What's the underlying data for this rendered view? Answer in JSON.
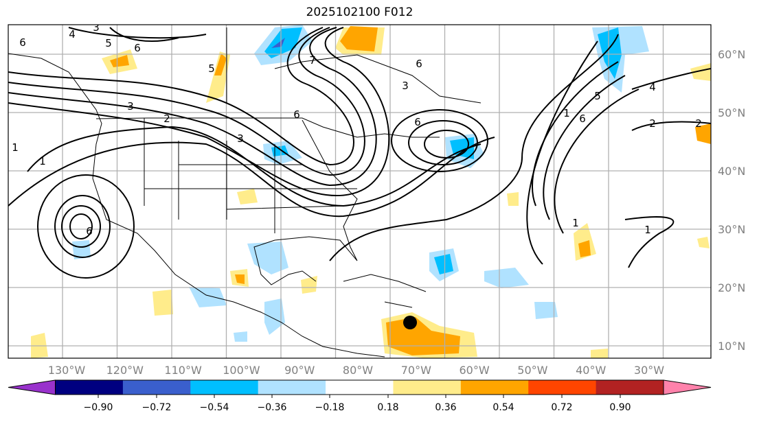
{
  "title": "2025102100 F012",
  "lon_labels": [
    "130°W",
    "120°W",
    "110°W",
    "100°W",
    "90°W",
    "80°W",
    "70°W",
    "60°W",
    "50°W",
    "40°W",
    "30°W"
  ],
  "lat_labels": [
    "60°N",
    "50°N",
    "40°N",
    "30°N",
    "20°N",
    "10°N"
  ],
  "colorbar": {
    "ticks": [
      "−0.90",
      "−0.72",
      "−0.54",
      "−0.36",
      "−0.18",
      "0.18",
      "0.36",
      "0.54",
      "0.72",
      "0.90"
    ],
    "colors": [
      "#9932CC",
      "#000080",
      "#3A5FCD",
      "#00BFFF",
      "#B0E2FF",
      "#FFFFFF",
      "#FFEC8B",
      "#FFA500",
      "#FF4500",
      "#B22222",
      "#FF82AB"
    ]
  },
  "contour_labels": [
    "4",
    "3",
    "5",
    "6",
    "6",
    "5",
    "3",
    "2",
    "1",
    "1",
    "6",
    "3",
    "6",
    "7",
    "3",
    "6",
    "2",
    "1",
    "6",
    "4",
    "2",
    "1",
    "1",
    "5",
    "6"
  ],
  "marker": {
    "label_lon": "70°W",
    "label_lat": "14°N"
  }
}
